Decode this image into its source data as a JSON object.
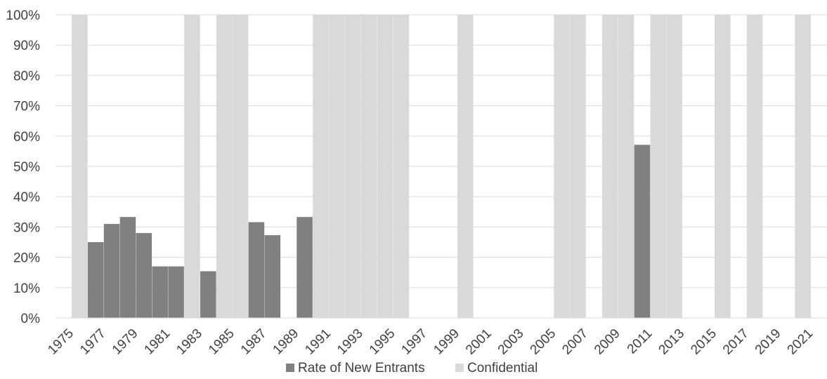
{
  "chart_data": {
    "type": "bar",
    "categories": [
      "1975",
      "1976",
      "1977",
      "1978",
      "1979",
      "1980",
      "1981",
      "1982",
      "1983",
      "1984",
      "1985",
      "1986",
      "1987",
      "1988",
      "1989",
      "1990",
      "1991",
      "1992",
      "1993",
      "1994",
      "1995",
      "1996",
      "1997",
      "1998",
      "1999",
      "2000",
      "2001",
      "2002",
      "2003",
      "2004",
      "2005",
      "2006",
      "2007",
      "2008",
      "2009",
      "2010",
      "2011",
      "2012",
      "2013",
      "2014",
      "2015",
      "2016",
      "2017",
      "2018",
      "2019",
      "2020",
      "2021",
      "2022"
    ],
    "x_tick_labels": [
      "1975",
      "1977",
      "1979",
      "1981",
      "1983",
      "1985",
      "1987",
      "1989",
      "1991",
      "1993",
      "1995",
      "1997",
      "1999",
      "2001",
      "2003",
      "2005",
      "2007",
      "2009",
      "2011",
      "2013",
      "2015",
      "2017",
      "2019",
      "2021"
    ],
    "y_tick_labels": [
      "0%",
      "10%",
      "20%",
      "30%",
      "40%",
      "50%",
      "60%",
      "70%",
      "80%",
      "90%",
      "100%"
    ],
    "ylim": [
      0,
      1
    ],
    "grid": true,
    "legend_position": "bottom",
    "series": [
      {
        "name": "Rate of New Entrants",
        "color": "#808080",
        "values": [
          null,
          null,
          0.25,
          0.31,
          0.333,
          0.28,
          0.17,
          0.17,
          null,
          0.154,
          null,
          null,
          0.316,
          0.273,
          null,
          0.333,
          null,
          null,
          null,
          null,
          null,
          null,
          null,
          null,
          null,
          null,
          null,
          null,
          null,
          null,
          null,
          null,
          null,
          null,
          null,
          null,
          0.571,
          null,
          null,
          null,
          null,
          null,
          null,
          null,
          null,
          null,
          null,
          null
        ]
      },
      {
        "name": "Confidential",
        "color": "#d9d9d9",
        "values": [
          null,
          1,
          null,
          null,
          null,
          null,
          null,
          null,
          1,
          null,
          1,
          1,
          null,
          null,
          null,
          null,
          1,
          1,
          1,
          1,
          1,
          1,
          null,
          null,
          null,
          1,
          null,
          null,
          null,
          null,
          null,
          1,
          1,
          null,
          1,
          1,
          null,
          1,
          1,
          null,
          null,
          1,
          null,
          1,
          null,
          null,
          1,
          null
        ]
      }
    ]
  }
}
